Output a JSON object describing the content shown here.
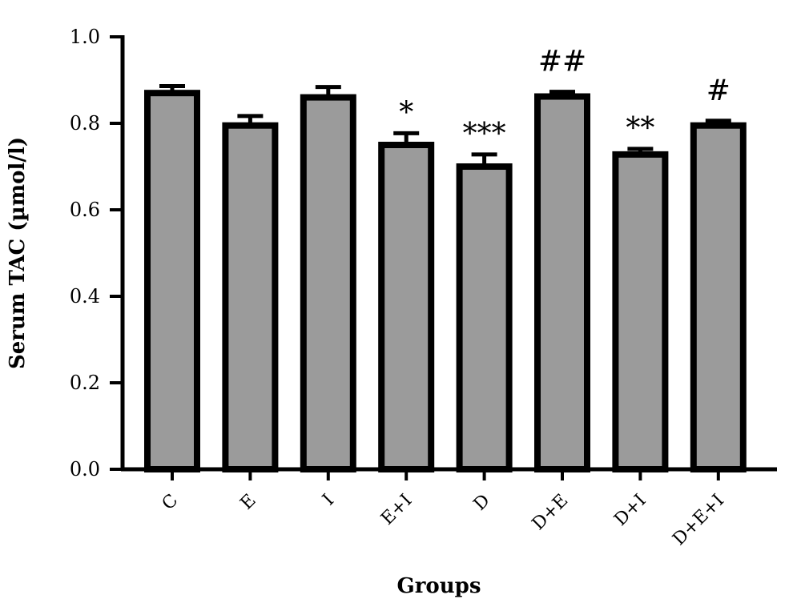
{
  "chart_data": {
    "type": "bar",
    "title": "",
    "xlabel": "Groups",
    "ylabel": "Serum TAC (µmol/l)",
    "ylim": [
      0,
      1.0
    ],
    "yticks": [
      "0.0",
      "0.2",
      "0.4",
      "0.6",
      "0.8",
      "1.0"
    ],
    "ytick_values": [
      0,
      0.2,
      0.4,
      0.6,
      0.8,
      1.0
    ],
    "categories": [
      "C",
      "E",
      "I",
      "E+I",
      "D",
      "D+E",
      "D+I",
      "D+E+I"
    ],
    "values": [
      0.87,
      0.795,
      0.86,
      0.75,
      0.7,
      0.862,
      0.728,
      0.795
    ],
    "errors": [
      0.016,
      0.022,
      0.024,
      0.027,
      0.028,
      0.011,
      0.013,
      0.011
    ],
    "annotations": [
      "",
      "",
      "",
      "*",
      "***",
      "##",
      "**",
      "#"
    ],
    "bar_color": "#9b9b9b",
    "edge_color": "#000000",
    "grid": false,
    "legend": "none"
  }
}
